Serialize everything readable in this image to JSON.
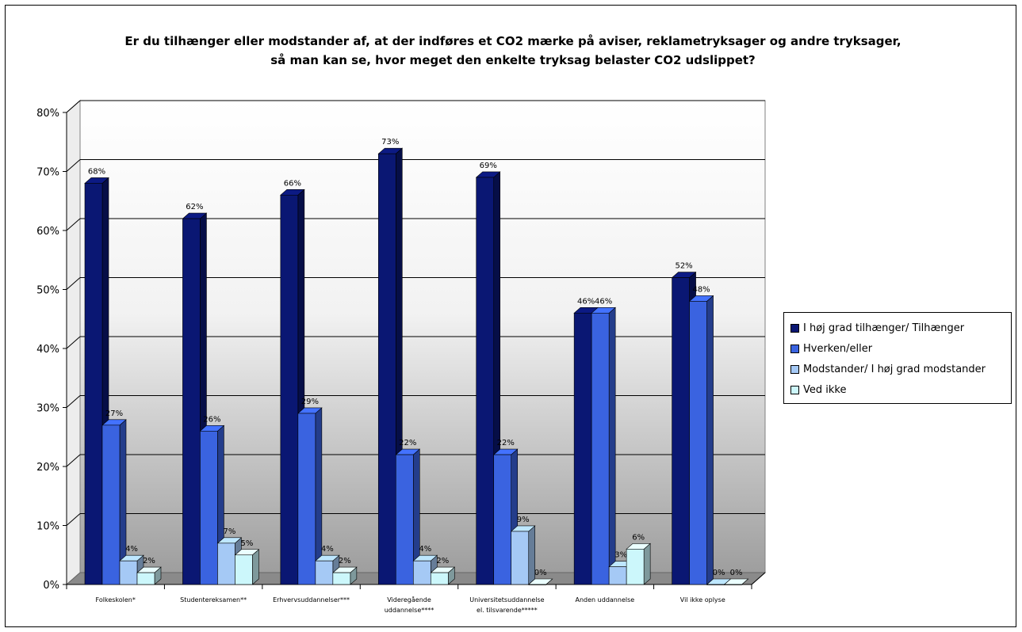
{
  "chart_data": {
    "type": "bar",
    "title_lines": [
      "Er du tilhænger eller modstander af, at der indføres et CO2 mærke på aviser, reklametryksager og andre tryksager,",
      "så man kan se, hvor meget den enkelte tryksag belaster CO2 udslippet?"
    ],
    "categories": [
      [
        "Folkeskolen*"
      ],
      [
        "Studentereksamen**"
      ],
      [
        "Erhvervsuddannelser***"
      ],
      [
        "Videregående",
        "uddannelse****"
      ],
      [
        "Universitetsuddannelse",
        "el. tilsvarende*****"
      ],
      [
        "Anden uddannelse"
      ],
      [
        "Vil ikke oplyse"
      ]
    ],
    "series": [
      {
        "name": "I høj grad tilhænger/ Tilhænger",
        "color": "#0a1773",
        "values": [
          68,
          62,
          66,
          73,
          69,
          46,
          52
        ]
      },
      {
        "name": "Hverken/eller",
        "color": "#3a63e0",
        "values": [
          27,
          26,
          29,
          22,
          22,
          46,
          48
        ]
      },
      {
        "name": "Modstander/ I høj grad modstander",
        "color": "#a5c9f5",
        "values": [
          4,
          7,
          4,
          4,
          9,
          3,
          0
        ]
      },
      {
        "name": "Ved ikke",
        "color": "#ccf7fb",
        "values": [
          2,
          5,
          2,
          2,
          0,
          6,
          0
        ]
      }
    ],
    "y_ticks": [
      "0%",
      "10%",
      "20%",
      "30%",
      "40%",
      "50%",
      "60%",
      "70%",
      "80%"
    ],
    "ylim": [
      0,
      80
    ],
    "y_unit": "%",
    "grid": true,
    "legend_position": "right"
  }
}
